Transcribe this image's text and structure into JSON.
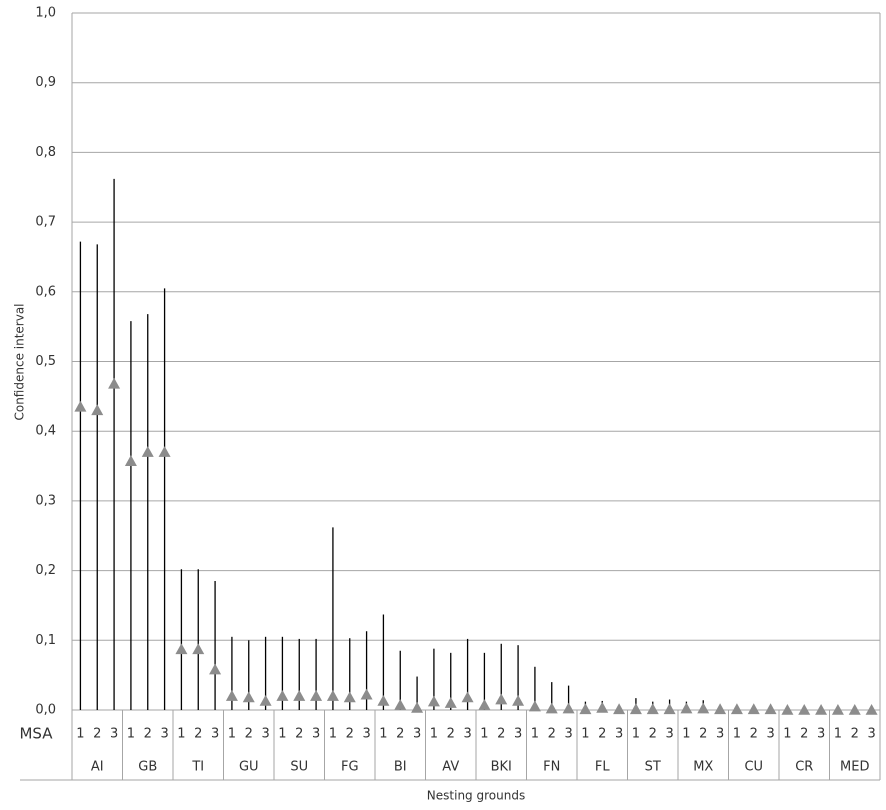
{
  "chart_data": {
    "type": "errorbar",
    "y_label": "Confidence interval",
    "x_label": "Nesting grounds",
    "subcategory_label": "MSA",
    "categories": [
      "AI",
      "GB",
      "TI",
      "GU",
      "SU",
      "FG",
      "BI",
      "AV",
      "BKI",
      "FN",
      "FL",
      "ST",
      "MX",
      "CU",
      "CR",
      "MED"
    ],
    "series": [
      {
        "name": "1",
        "color": "#8c8c8c",
        "bar_color": "#000000",
        "values": [
          0.435,
          0.357,
          0.087,
          0.02,
          0.02,
          0.02,
          0.013,
          0.012,
          0.007,
          0.005,
          0.001,
          0.001,
          0.002,
          0.001,
          0,
          0
        ],
        "lower": [
          0,
          0,
          0,
          0,
          0,
          0,
          0,
          0,
          0,
          0,
          0,
          0,
          0,
          0,
          0,
          0
        ],
        "upper": [
          0.672,
          0.558,
          0.202,
          0.105,
          0.105,
          0.262,
          0.137,
          0.088,
          0.082,
          0.062,
          0.012,
          0.017,
          0.012,
          0.005,
          0.003,
          0.003
        ]
      },
      {
        "name": "2",
        "color": "#8c8c8c",
        "bar_color": "#000000",
        "values": [
          0.43,
          0.37,
          0.087,
          0.018,
          0.02,
          0.018,
          0.007,
          0.01,
          0.015,
          0.002,
          0.003,
          0.001,
          0.002,
          0.001,
          0,
          0
        ],
        "lower": [
          0,
          0,
          0,
          0,
          0,
          0,
          0,
          0,
          0,
          0,
          0,
          0,
          0,
          0,
          0,
          0
        ],
        "upper": [
          0.668,
          0.568,
          0.202,
          0.1,
          0.102,
          0.103,
          0.085,
          0.082,
          0.095,
          0.04,
          0.013,
          0.012,
          0.014,
          0.005,
          0.003,
          0.003
        ]
      },
      {
        "name": "3",
        "color": "#8c8c8c",
        "bar_color": "#000000",
        "values": [
          0.468,
          0.37,
          0.058,
          0.013,
          0.02,
          0.022,
          0.003,
          0.018,
          0.013,
          0.002,
          0.001,
          0.001,
          0.001,
          0.001,
          0,
          0
        ],
        "lower": [
          0,
          0,
          0,
          0,
          0,
          0,
          0,
          0,
          0,
          0,
          0,
          0,
          0,
          0,
          0,
          0
        ],
        "upper": [
          0.762,
          0.605,
          0.185,
          0.105,
          0.102,
          0.113,
          0.048,
          0.102,
          0.093,
          0.035,
          0.005,
          0.015,
          0.005,
          0.005,
          0.003,
          0.003
        ]
      }
    ],
    "ylim": [
      0,
      1
    ],
    "yticks": [
      {
        "value": 0,
        "label": "0,0"
      },
      {
        "value": 0.1,
        "label": "0,1"
      },
      {
        "value": 0.2,
        "label": "0,2"
      },
      {
        "value": 0.3,
        "label": "0,3"
      },
      {
        "value": 0.4,
        "label": "0,4"
      },
      {
        "value": 0.5,
        "label": "0,5"
      },
      {
        "value": 0.6,
        "label": "0,6"
      },
      {
        "value": 0.7,
        "label": "0,7"
      },
      {
        "value": 0.8,
        "label": "0,8"
      },
      {
        "value": 0.9,
        "label": "0,9"
      },
      {
        "value": 1,
        "label": "1,0"
      }
    ],
    "grid": true
  }
}
